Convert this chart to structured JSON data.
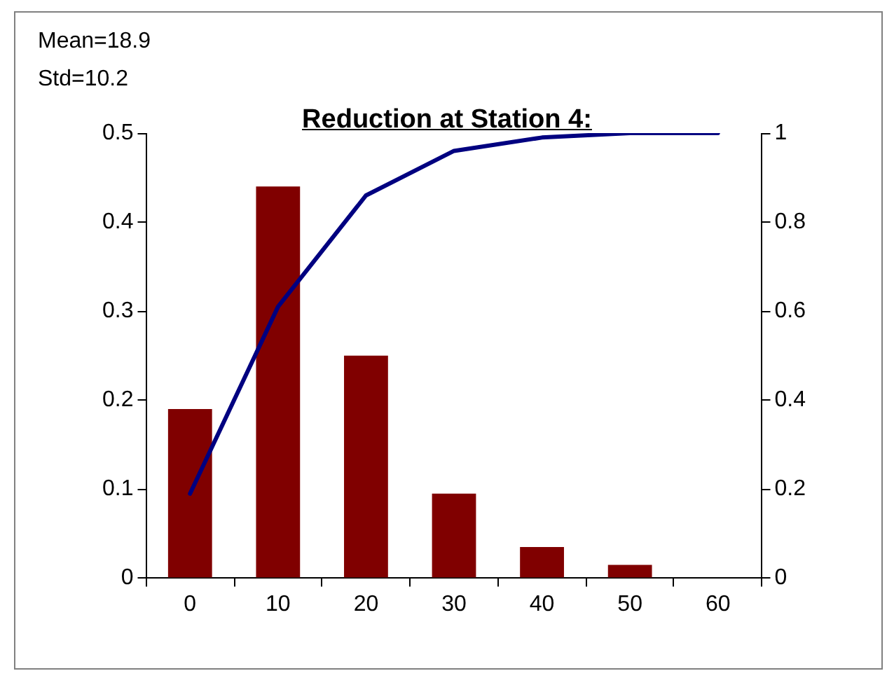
{
  "chart_data": {
    "type": "bar",
    "title": "Reduction at Station 4:",
    "annotations": [
      "Mean=18.9",
      "Std=10.2"
    ],
    "categories": [
      "0",
      "10",
      "20",
      "30",
      "40",
      "50",
      "60"
    ],
    "series": [
      {
        "color": "#800000",
        "values": [
          0.19,
          0.44,
          0.25,
          0.095,
          0.035,
          0.015,
          0
        ]
      },
      {
        "type": "line",
        "axis": "y2",
        "color": "#000080",
        "values": [
          0.19,
          0.61,
          0.86,
          0.96,
          0.99,
          1.0,
          1.0
        ]
      }
    ],
    "ylim": [
      0,
      0.5
    ],
    "yticks": [
      0,
      0.1,
      0.2,
      0.3,
      0.4,
      0.5
    ],
    "y2lim": [
      0,
      1
    ],
    "y2ticks": [
      0,
      0.2,
      0.4,
      0.6,
      0.8,
      1
    ],
    "grid": false,
    "legend": false,
    "marker": "none",
    "line_style": "solid"
  }
}
